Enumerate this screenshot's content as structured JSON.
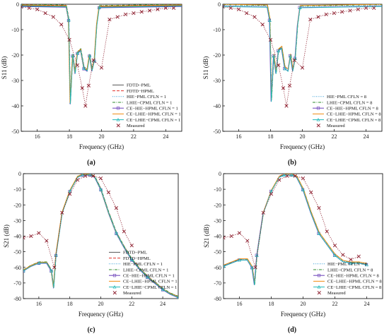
{
  "figure": {
    "panel_labels": [
      "(a)",
      "(b)",
      "(c)",
      "(d)"
    ]
  },
  "chart_data": [
    {
      "id": "a",
      "type": "line",
      "xlabel": "Frequency (GHz)",
      "ylabel": "S11 (dB)",
      "xlim": [
        15,
        25
      ],
      "ylim": [
        -50,
        0
      ],
      "xticks": [
        16,
        18,
        20,
        22,
        24
      ],
      "yticks": [
        0,
        -10,
        -20,
        -30,
        -40,
        -50
      ],
      "legend_position": "bottom-right",
      "simulated": {
        "x": [
          15,
          17.8,
          17.95,
          18.05,
          18.2,
          18.35,
          18.5,
          18.7,
          18.9,
          19.1,
          19.25,
          19.4,
          19.55,
          19.7,
          19.85,
          25
        ],
        "y": [
          -0.5,
          -0.8,
          -6,
          -39,
          -20,
          -27,
          -19,
          -18,
          -25,
          -26,
          -20,
          -26,
          -22,
          -8,
          -1,
          -0.5
        ]
      },
      "measured": {
        "x": [
          15,
          15.5,
          16,
          16.5,
          17,
          17.5,
          18,
          18.5,
          18.8,
          19,
          19.2,
          19.5,
          20,
          20.5,
          21,
          21.5,
          22,
          22.5,
          23,
          23.5,
          24,
          24.5
        ],
        "y": [
          -1,
          -1.5,
          -2,
          -3.5,
          -5,
          -8,
          -14,
          -24,
          -33,
          -40,
          -32,
          -22,
          -25,
          -6,
          -5,
          -4,
          -3.5,
          -3,
          -2.5,
          -2,
          -1.5,
          -1.5
        ]
      },
      "series": [
        {
          "name": "FDTD−PML",
          "color": "#555555",
          "style": "solid",
          "marker": ""
        },
        {
          "name": "FDTD−HPML",
          "color": "#e0302a",
          "style": "dash",
          "marker": ""
        },
        {
          "name": "HIE−PML CFLN = 1",
          "color": "#3aa0d8",
          "style": "dot",
          "marker": ""
        },
        {
          "name": "LHIE−CPML CFLN = 1",
          "color": "#2e8b2e",
          "style": "dashdot",
          "marker": ""
        },
        {
          "name": "CE−HIE−HPML CFLN = 1",
          "color": "#6a3fb8",
          "style": "solid",
          "marker": "square"
        },
        {
          "name": "CE−LHIE−HPML CFLN = 1",
          "color": "#f08a10",
          "style": "solid",
          "marker": ""
        },
        {
          "name": "CE−LHIE−CPML CFLN = 1",
          "color": "#20b8b8",
          "style": "solid",
          "marker": "tri"
        },
        {
          "name": "Measured",
          "color": "#8b1a2a",
          "style": "dotted",
          "marker": "x"
        }
      ]
    },
    {
      "id": "b",
      "type": "line",
      "xlabel": "Frequency (GHz)",
      "ylabel": "S11 (dB)",
      "xlim": [
        15,
        25
      ],
      "ylim": [
        -50,
        0
      ],
      "xticks": [
        16,
        18,
        20,
        22,
        24
      ],
      "yticks": [
        0,
        -10,
        -20,
        -30,
        -40,
        -50
      ],
      "legend_position": "bottom-right",
      "simulated": {
        "x": [
          15,
          17.8,
          17.95,
          18.05,
          18.2,
          18.35,
          18.5,
          18.7,
          18.9,
          19.1,
          19.25,
          19.4,
          19.55,
          19.7,
          19.85,
          25
        ],
        "y": [
          -0.5,
          -0.8,
          -6,
          -38,
          -20,
          -27,
          -18,
          -17,
          -25,
          -26,
          -20,
          -26,
          -21,
          -8,
          -1,
          -0.5
        ]
      },
      "measured": {
        "x": [
          15,
          15.5,
          16,
          16.5,
          17,
          17.5,
          18,
          18.5,
          18.8,
          19,
          19.2,
          19.5,
          20,
          20.5,
          21,
          21.5,
          22,
          22.5,
          23,
          23.5,
          24,
          24.5
        ],
        "y": [
          -1,
          -1.5,
          -2,
          -3.5,
          -5,
          -8,
          -14,
          -24,
          -33,
          -40,
          -32,
          -22,
          -25,
          -6,
          -5,
          -4,
          -3.5,
          -3,
          -2.5,
          -2,
          -1.5,
          -1.5
        ]
      },
      "series": [
        {
          "name": "HIE−PML CFLN = 8",
          "color": "#3aa0d8",
          "style": "dot",
          "marker": ""
        },
        {
          "name": "LHIE−CPML CFLN = 8",
          "color": "#2e8b2e",
          "style": "dashdot",
          "marker": ""
        },
        {
          "name": "CE−HIE−HPML CFLN = 8",
          "color": "#6a3fb8",
          "style": "solid",
          "marker": "square"
        },
        {
          "name": "CE−LHIE−HPML CFLN = 8",
          "color": "#f08a10",
          "style": "solid",
          "marker": ""
        },
        {
          "name": "CE−LHIE−CPML CFLN = 8",
          "color": "#20b8b8",
          "style": "solid",
          "marker": "tri"
        },
        {
          "name": "Measured",
          "color": "#8b1a2a",
          "style": "dotted",
          "marker": "x"
        }
      ]
    },
    {
      "id": "c",
      "type": "line",
      "xlabel": "Frequency (GHz)",
      "ylabel": "S21 (dB)",
      "xlim": [
        15,
        25
      ],
      "ylim": [
        -80,
        0
      ],
      "xticks": [
        16,
        18,
        20,
        22,
        24
      ],
      "yticks": [
        0,
        -10,
        -20,
        -30,
        -40,
        -50,
        -60,
        -70,
        -80
      ],
      "legend_position": "bottom-right",
      "simulated": {
        "x": [
          15,
          15.5,
          16,
          16.5,
          16.8,
          16.95,
          17.1,
          17.5,
          18,
          18.5,
          18.8,
          19,
          19.3,
          19.6,
          20,
          20.5,
          21,
          21.5,
          22,
          22.5,
          23,
          23.5,
          24,
          24.5,
          25
        ],
        "y": [
          -62,
          -59,
          -57,
          -57,
          -62,
          -73,
          -52,
          -25,
          -11,
          -2,
          -0.6,
          -0.5,
          -0.6,
          -2,
          -10,
          -25,
          -38,
          -47,
          -55,
          -61,
          -66,
          -70,
          -74,
          -77,
          -79
        ]
      },
      "measured": {
        "x": [
          15,
          15.5,
          16,
          16.5,
          17,
          17.5,
          18,
          18.5,
          19,
          19.5,
          20,
          20.5,
          21,
          21.5,
          22
        ],
        "y": [
          -41,
          -40,
          -38,
          -43,
          -60,
          -25,
          -13,
          -4,
          -1.5,
          -1.5,
          -3,
          -12,
          -22,
          -37,
          -46
        ]
      },
      "series": [
        {
          "name": "FDTD−PML",
          "color": "#555555",
          "style": "solid",
          "marker": ""
        },
        {
          "name": "FDTD−HPML",
          "color": "#e0302a",
          "style": "dash",
          "marker": ""
        },
        {
          "name": "HIE−PML CFLN = 1",
          "color": "#3aa0d8",
          "style": "dot",
          "marker": ""
        },
        {
          "name": "LHIE−CPML CFLN = 1",
          "color": "#2e8b2e",
          "style": "dashdot",
          "marker": ""
        },
        {
          "name": "CE−HIE−HPML CFLN = 1",
          "color": "#6a3fb8",
          "style": "solid",
          "marker": "square"
        },
        {
          "name": "CE−LHIE−HPML CFLN = 1",
          "color": "#f08a10",
          "style": "solid",
          "marker": ""
        },
        {
          "name": "CE−LHIE−CPML CFLN = 1",
          "color": "#20b8b8",
          "style": "solid",
          "marker": "tri"
        },
        {
          "name": "Measured",
          "color": "#8b1a2a",
          "style": "dotted",
          "marker": "x"
        }
      ]
    },
    {
      "id": "d",
      "type": "line",
      "xlabel": "Frequency (GHz)",
      "ylabel": "S21 (dB)",
      "xlim": [
        15,
        25
      ],
      "ylim": [
        -80,
        0
      ],
      "xticks": [
        16,
        18,
        20,
        22,
        24
      ],
      "yticks": [
        0,
        -10,
        -20,
        -30,
        -40,
        -50,
        -60,
        -70,
        -80
      ],
      "legend_position": "bottom-right",
      "simulated": {
        "x": [
          15,
          15.5,
          16,
          16.5,
          16.8,
          16.95,
          17.1,
          17.5,
          18,
          18.5,
          18.8,
          19,
          19.3,
          19.6,
          20,
          20.5,
          21,
          21.5,
          22,
          22.5,
          23,
          23.5,
          24
        ],
        "y": [
          -59,
          -57,
          -55,
          -55,
          -60,
          -71,
          -52,
          -25,
          -11,
          -2,
          -0.6,
          -0.5,
          -0.6,
          -2,
          -10,
          -25,
          -38,
          -45,
          -52,
          -56,
          -57,
          -57,
          -58
        ]
      },
      "measured": {
        "x": [
          15,
          15.5,
          16,
          16.5,
          17,
          17.5,
          18,
          18.5,
          19,
          19.5,
          20,
          20.5,
          21,
          21.5,
          22,
          22.5,
          23,
          23.5
        ],
        "y": [
          -41,
          -40,
          -38,
          -43,
          -60,
          -25,
          -13,
          -4,
          -1.5,
          -1.5,
          -3,
          -12,
          -22,
          -37,
          -46,
          -52,
          -55,
          -53
        ]
      },
      "series": [
        {
          "name": "HIE−PML CFLN = 8",
          "color": "#3aa0d8",
          "style": "dot",
          "marker": ""
        },
        {
          "name": "LHIE−CPML CFLN = 8",
          "color": "#2e8b2e",
          "style": "dashdot",
          "marker": ""
        },
        {
          "name": "CE−HIE−HPML CFLN = 8",
          "color": "#6a3fb8",
          "style": "solid",
          "marker": "square"
        },
        {
          "name": "CE−LHIE−HPML CFLN = 8",
          "color": "#f08a10",
          "style": "solid",
          "marker": ""
        },
        {
          "name": "CE−LHIE−CPML CFLN = 8",
          "color": "#20b8b8",
          "style": "solid",
          "marker": "tri"
        },
        {
          "name": "Measured",
          "color": "#8b1a2a",
          "style": "dotted",
          "marker": "x"
        }
      ]
    }
  ]
}
